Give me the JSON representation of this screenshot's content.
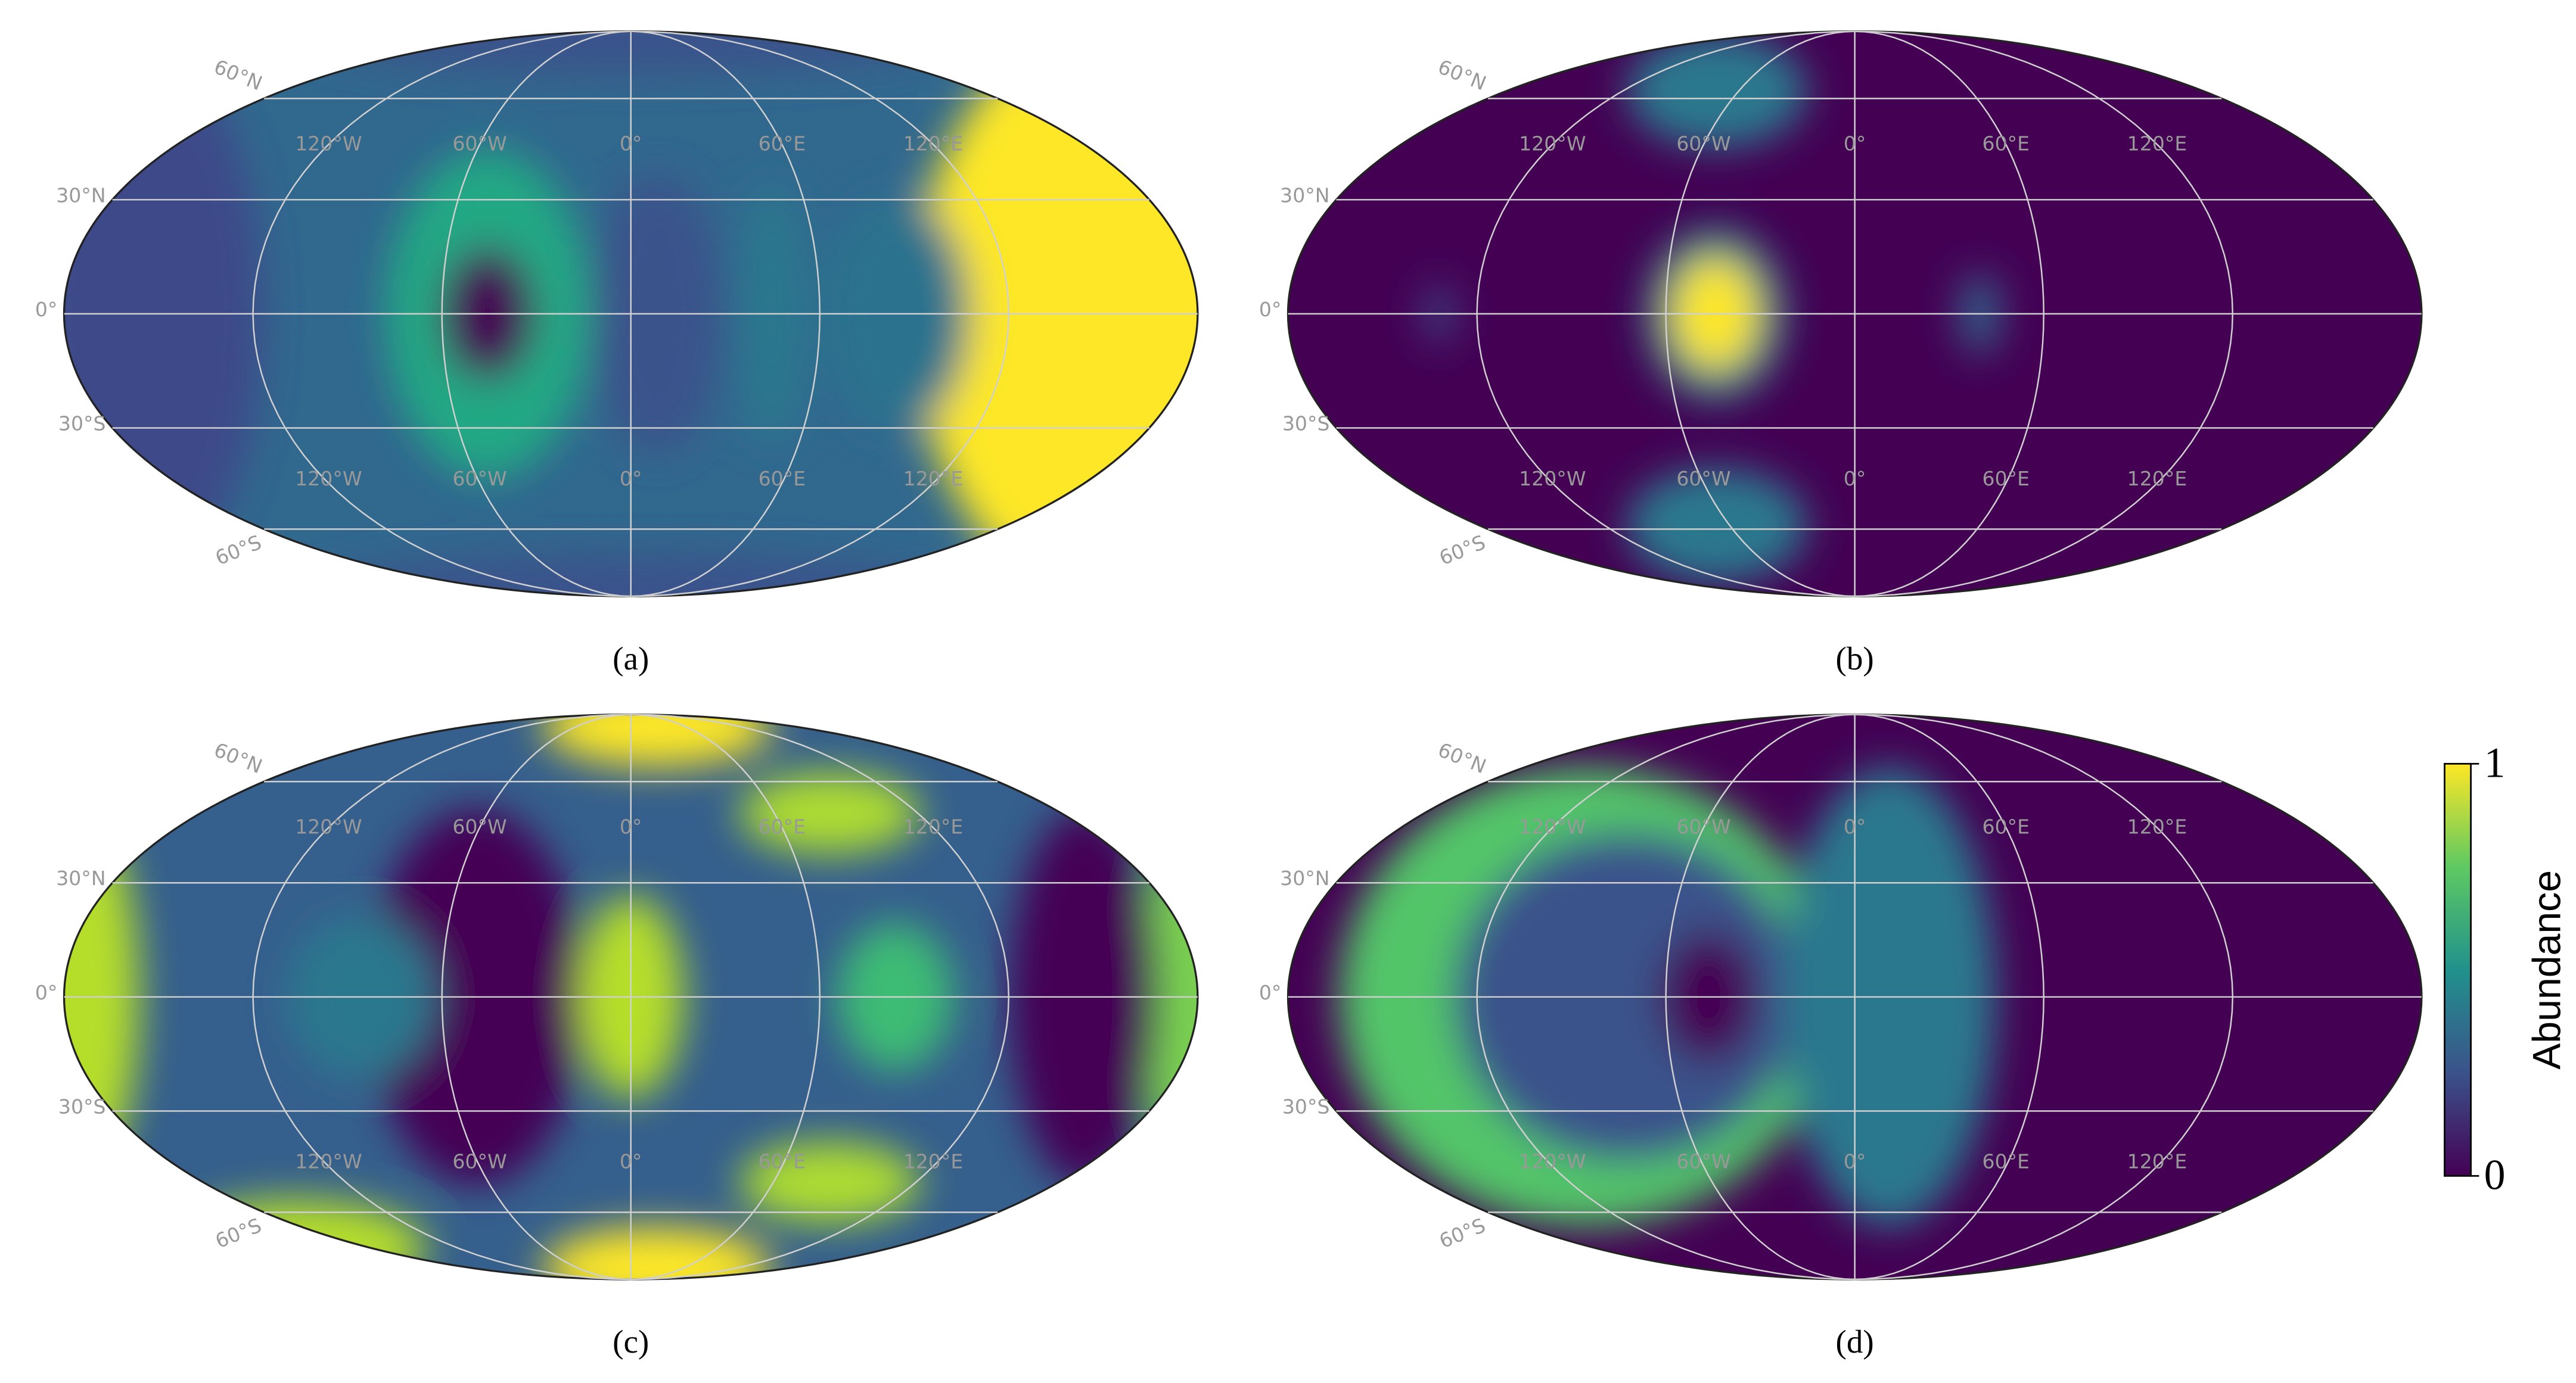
{
  "chart_data": [
    {
      "type": "map",
      "title": "(a)",
      "lat_ticks": [
        {
          "value": 60,
          "label": "60°N"
        },
        {
          "value": 30,
          "label": "30°N"
        },
        {
          "value": 0,
          "label": "0°"
        },
        {
          "value": -30,
          "label": "30°S"
        },
        {
          "value": -60,
          "label": "60°S"
        }
      ],
      "lon_ticks": [
        {
          "value": -120,
          "label": "120°W"
        },
        {
          "value": -60,
          "label": "60°W"
        },
        {
          "value": 0,
          "label": "0°"
        },
        {
          "value": 60,
          "label": "60°E"
        },
        {
          "value": 120,
          "label": "120°E"
        }
      ]
    },
    {
      "type": "map",
      "title": "(b)",
      "lat_ticks": [
        {
          "value": 60,
          "label": "60°N"
        },
        {
          "value": 30,
          "label": "30°N"
        },
        {
          "value": 0,
          "label": "0°"
        },
        {
          "value": -30,
          "label": "30°S"
        },
        {
          "value": -60,
          "label": "60°S"
        }
      ],
      "lon_ticks": [
        {
          "value": -120,
          "label": "120°W"
        },
        {
          "value": -60,
          "label": "60°W"
        },
        {
          "value": 0,
          "label": "0°"
        },
        {
          "value": 60,
          "label": "60°E"
        },
        {
          "value": 120,
          "label": "120°E"
        }
      ]
    },
    {
      "type": "map",
      "title": "(c)",
      "lat_ticks": [
        {
          "value": 60,
          "label": "60°N"
        },
        {
          "value": 30,
          "label": "30°N"
        },
        {
          "value": 0,
          "label": "0°"
        },
        {
          "value": -30,
          "label": "30°S"
        },
        {
          "value": -60,
          "label": "60°S"
        }
      ],
      "lon_ticks": [
        {
          "value": -120,
          "label": "120°W"
        },
        {
          "value": -60,
          "label": "60°W"
        },
        {
          "value": 0,
          "label": "0°"
        },
        {
          "value": 60,
          "label": "60°E"
        },
        {
          "value": 120,
          "label": "120°E"
        }
      ]
    },
    {
      "type": "map",
      "title": "(d)",
      "lat_ticks": [
        {
          "value": 60,
          "label": "60°N"
        },
        {
          "value": 30,
          "label": "30°N"
        },
        {
          "value": 0,
          "label": "0°"
        },
        {
          "value": -30,
          "label": "30°S"
        },
        {
          "value": -60,
          "label": "60°S"
        }
      ],
      "lon_ticks": [
        {
          "value": -120,
          "label": "120°W"
        },
        {
          "value": -60,
          "label": "60°W"
        },
        {
          "value": 0,
          "label": "0°"
        },
        {
          "value": 60,
          "label": "60°E"
        },
        {
          "value": 120,
          "label": "120°E"
        }
      ],
      "colorbar": {
        "label": "Abundance",
        "lim": [
          0,
          1
        ],
        "ticks": [
          0,
          1
        ],
        "colors": [
          "#440154",
          "#3b528b",
          "#21918c",
          "#5ec962",
          "#fde725"
        ]
      }
    }
  ]
}
